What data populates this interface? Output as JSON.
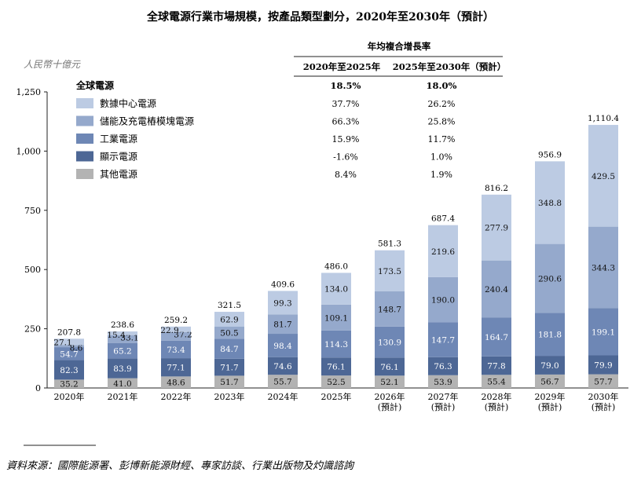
{
  "chart_data": {
    "type": "bar",
    "stacked": true,
    "title": "全球電源行業市場規模，按產品類型劃分，2020年至2030年（預計）",
    "unit": "人民幣十億元",
    "categories": [
      "2020年",
      "2021年",
      "2022年",
      "2023年",
      "2024年",
      "2025年",
      "2026年\n(預計)",
      "2027年\n(預計)",
      "2028年\n(預計)",
      "2029年\n(預計)",
      "2030年\n(預計)"
    ],
    "ylim": [
      0,
      1250
    ],
    "yticks": [
      0,
      250,
      500,
      750,
      1000,
      1250
    ],
    "ytick_labels": [
      "0",
      "250",
      "500",
      "750",
      "1,000",
      "1,250"
    ],
    "legend_title": "全球電源",
    "series": [
      {
        "name": "其他電源",
        "color": "#b3b3b3",
        "values": [
          35.2,
          41.0,
          48.6,
          51.7,
          55.7,
          52.5,
          52.1,
          53.9,
          55.4,
          56.7,
          57.7
        ],
        "labels": [
          "35.2",
          "41.0",
          "48.6",
          "51.7",
          "55.7",
          "52.5",
          "52.1",
          "53.9",
          "55.4",
          "56.7",
          "57.7"
        ]
      },
      {
        "name": "顯示電源",
        "color": "#4d6795",
        "values": [
          82.3,
          83.9,
          77.1,
          71.7,
          74.6,
          76.1,
          76.1,
          76.3,
          77.8,
          79.0,
          79.9
        ],
        "labels": [
          "82.3",
          "83.9",
          "77.1",
          "71.7",
          "74.6",
          "76.1",
          "76.1",
          "76.3",
          "77.8",
          "79.0",
          "79.9"
        ]
      },
      {
        "name": "工業電源",
        "color": "#6e87b5",
        "values": [
          54.7,
          65.2,
          73.4,
          84.7,
          98.4,
          114.3,
          130.9,
          147.7,
          164.7,
          181.8,
          199.1
        ],
        "labels": [
          "54.7",
          "65.2",
          "73.4",
          "84.7",
          "98.4",
          "114.3",
          "130.9",
          "147.7",
          "164.7",
          "181.8",
          "199.1"
        ]
      },
      {
        "name": "儲能及充電樁模塊電源",
        "color": "#95a9cc",
        "values": [
          8.6,
          33.1,
          37.2,
          50.5,
          81.7,
          109.1,
          148.7,
          190.0,
          240.4,
          290.6,
          344.3
        ],
        "labels": [
          "8.6",
          "33.1",
          "37.2",
          "50.5",
          "81.7",
          "109.1",
          "148.7",
          "190.0",
          "240.4",
          "290.6",
          "344.3"
        ]
      },
      {
        "name": "數據中心電源",
        "color": "#bccbe3",
        "values": [
          27.1,
          15.4,
          22.9,
          62.9,
          99.3,
          134.0,
          173.5,
          219.6,
          277.9,
          348.8,
          429.5
        ],
        "labels": [
          "27.1",
          "15.4",
          "22.9",
          "62.9",
          "99.3",
          "134.0",
          "173.5",
          "219.6",
          "277.9",
          "348.8",
          "429.5"
        ]
      }
    ],
    "totals": [
      207.8,
      238.6,
      259.2,
      321.5,
      409.6,
      486.0,
      581.3,
      687.4,
      816.2,
      956.9,
      1110.4
    ],
    "total_labels": [
      "207.8",
      "238.6",
      "259.2",
      "321.5",
      "409.6",
      "486.0",
      "581.3",
      "687.4",
      "816.2",
      "956.9",
      "1,110.4"
    ],
    "cagr": {
      "title": "年均複合增長率",
      "headers": [
        "2020年至2025年",
        "2025年至2030年（預計）"
      ],
      "total": [
        "18.5%",
        "18.0%"
      ],
      "rows": [
        {
          "name": "數據中心電源",
          "values": [
            "37.7%",
            "26.2%"
          ]
        },
        {
          "name": "儲能及充電樁模塊電源",
          "values": [
            "66.3%",
            "25.8%"
          ]
        },
        {
          "name": "工業電源",
          "values": [
            "15.9%",
            "11.7%"
          ]
        },
        {
          "name": "顯示電源",
          "values": [
            "-1.6%",
            "1.0%"
          ]
        },
        {
          "name": "其他電源",
          "values": [
            "8.4%",
            "1.9%"
          ]
        }
      ]
    }
  },
  "source": "資料來源：國際能源署、彭博新能源財經、專家訪談、行業出版物及灼識諮詢"
}
